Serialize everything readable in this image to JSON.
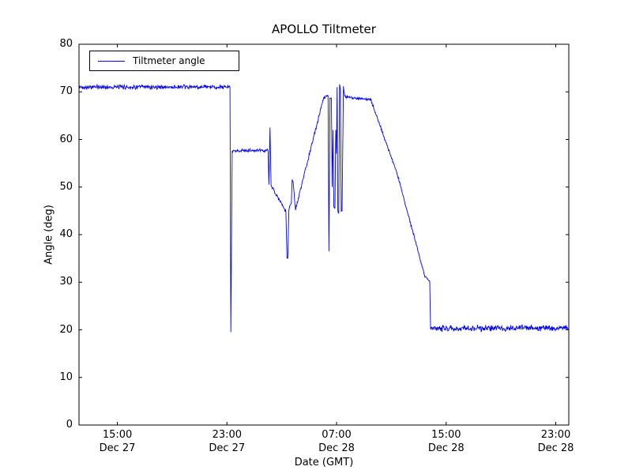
{
  "chart_data": {
    "type": "line",
    "title": "APOLLO Tiltmeter",
    "xlabel": "Date (GMT)",
    "ylabel": "Angle (deg)",
    "xlim": [
      12.2,
      47.95
    ],
    "ylim": [
      0,
      80
    ],
    "yticks": [
      0,
      10,
      20,
      30,
      40,
      50,
      60,
      70,
      80
    ],
    "xticks": [
      {
        "t": 15,
        "line1": "15:00",
        "line2": "Dec 27"
      },
      {
        "t": 23,
        "line1": "23:00",
        "line2": "Dec 27"
      },
      {
        "t": 31,
        "line1": "07:00",
        "line2": "Dec 28"
      },
      {
        "t": 39,
        "line1": "15:00",
        "line2": "Dec 28"
      },
      {
        "t": 47,
        "line1": "23:00",
        "line2": "Dec 28"
      }
    ],
    "legend": {
      "position": "upper left",
      "entries": [
        {
          "label": "Tiltmeter angle",
          "color": "#0000ff"
        }
      ]
    },
    "line_color": "#0000ff",
    "background": "#ffffff",
    "grid": false,
    "noise_seed": 42,
    "series": [
      {
        "name": "Tiltmeter angle",
        "time_unit": "hours since Dec 27 00:00 GMT",
        "segments_format": [
          "t_start",
          "value_start",
          "t_end",
          "value_end",
          "noise_amplitude_deg",
          "time_step_hours"
        ],
        "segments": [
          [
            12.2,
            71.0,
            23.22,
            71.0,
            0.4,
            0.03
          ],
          [
            23.22,
            71.0,
            23.28,
            19.5,
            0,
            0.06
          ],
          [
            23.28,
            19.5,
            23.38,
            57.6,
            0,
            0.05
          ],
          [
            23.38,
            57.6,
            26.0,
            57.7,
            0.3,
            0.03
          ],
          [
            26.0,
            57.7,
            26.06,
            50.5,
            0,
            0.03
          ],
          [
            26.06,
            50.5,
            26.14,
            62.5,
            0,
            0.04
          ],
          [
            26.14,
            62.5,
            26.22,
            50.3,
            0,
            0.04
          ],
          [
            26.22,
            50.3,
            27.3,
            44.8,
            0.3,
            0.03
          ],
          [
            27.3,
            44.8,
            27.38,
            35.2,
            0,
            0.04
          ],
          [
            27.38,
            35.2,
            27.44,
            35.0,
            0.2,
            0.02
          ],
          [
            27.44,
            35.0,
            27.52,
            45.3,
            0,
            0.04
          ],
          [
            27.52,
            45.3,
            27.7,
            46.8,
            0.3,
            0.03
          ],
          [
            27.7,
            46.8,
            27.76,
            51.6,
            0,
            0.03
          ],
          [
            27.76,
            51.6,
            27.84,
            50.8,
            0.2,
            0.03
          ],
          [
            27.84,
            50.8,
            28.0,
            45.2,
            0.25,
            0.03
          ],
          [
            28.0,
            45.2,
            30.05,
            68.8,
            0.3,
            0.03
          ],
          [
            30.05,
            68.8,
            30.38,
            69.2,
            0.25,
            0.03
          ],
          [
            30.38,
            69.2,
            30.44,
            36.5,
            0,
            0.03
          ],
          [
            30.44,
            36.5,
            30.52,
            68.6,
            0,
            0.04
          ],
          [
            30.52,
            68.6,
            30.62,
            68.8,
            0.25,
            0.03
          ],
          [
            30.62,
            68.8,
            30.68,
            50.0,
            0,
            0.03
          ],
          [
            30.68,
            50.0,
            30.74,
            62.0,
            0,
            0.03
          ],
          [
            30.74,
            62.0,
            30.8,
            46.0,
            0,
            0.03
          ],
          [
            30.8,
            46.0,
            30.88,
            45.5,
            0.25,
            0.02
          ],
          [
            30.88,
            45.5,
            30.94,
            62.0,
            0,
            0.03
          ],
          [
            30.94,
            62.0,
            30.99,
            57.0,
            0,
            0.025
          ],
          [
            30.99,
            57.0,
            31.04,
            71.0,
            0,
            0.025
          ],
          [
            31.04,
            71.0,
            31.09,
            45.0,
            0,
            0.025
          ],
          [
            31.09,
            45.0,
            31.16,
            44.6,
            0.25,
            0.02
          ],
          [
            31.16,
            44.6,
            31.22,
            71.5,
            0,
            0.03
          ],
          [
            31.22,
            71.5,
            31.28,
            70.5,
            0.2,
            0.02
          ],
          [
            31.28,
            70.5,
            31.34,
            44.8,
            0,
            0.03
          ],
          [
            31.34,
            44.8,
            31.4,
            45.2,
            0.2,
            0.02
          ],
          [
            31.4,
            45.2,
            31.5,
            71.0,
            0,
            0.05
          ],
          [
            31.5,
            71.0,
            31.6,
            69.0,
            0.2,
            0.03
          ],
          [
            31.6,
            69.0,
            33.5,
            68.3,
            0.22,
            0.03
          ],
          [
            33.5,
            68.3,
            35.4,
            53.0,
            0.25,
            0.03
          ],
          [
            35.4,
            53.0,
            37.45,
            31.2,
            0.25,
            0.03
          ],
          [
            37.45,
            31.2,
            37.8,
            30.2,
            0.2,
            0.03
          ],
          [
            37.8,
            30.2,
            37.86,
            20.3,
            0,
            0.03
          ],
          [
            37.86,
            20.3,
            47.95,
            20.4,
            0.55,
            0.03
          ]
        ]
      }
    ]
  }
}
